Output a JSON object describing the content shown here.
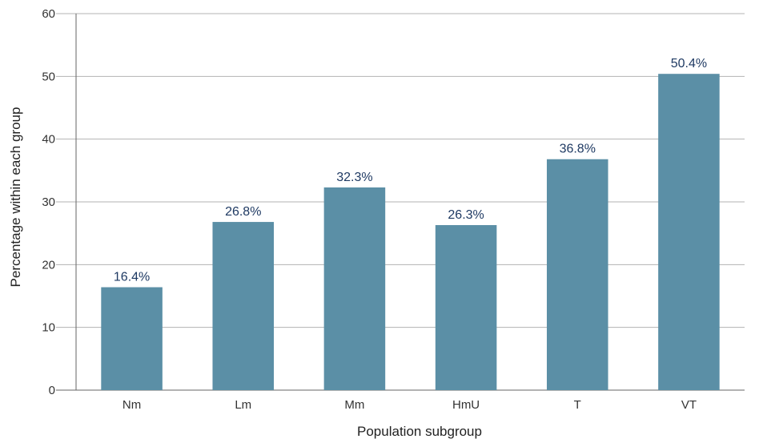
{
  "chart_data": {
    "type": "bar",
    "title": "",
    "xlabel": "Population subgroup",
    "ylabel": "Percentage within each group",
    "categories": [
      "Nm",
      "Lm",
      "Mm",
      "HmU",
      "T",
      "VT"
    ],
    "values": [
      16.4,
      26.8,
      32.3,
      26.3,
      36.8,
      50.4
    ],
    "data_labels": [
      "16.4%",
      "26.8%",
      "32.3%",
      "26.3%",
      "36.8%",
      "50.4%"
    ],
    "ylim": [
      0,
      60
    ],
    "yticks": [
      "0",
      "10",
      "20",
      "30",
      "40",
      "50",
      "60"
    ],
    "grid": true,
    "legend": "none"
  },
  "colors": {
    "bar": "#5b8fa6",
    "data_label": "#1f3a63",
    "gridline": "#b3b3b3"
  }
}
